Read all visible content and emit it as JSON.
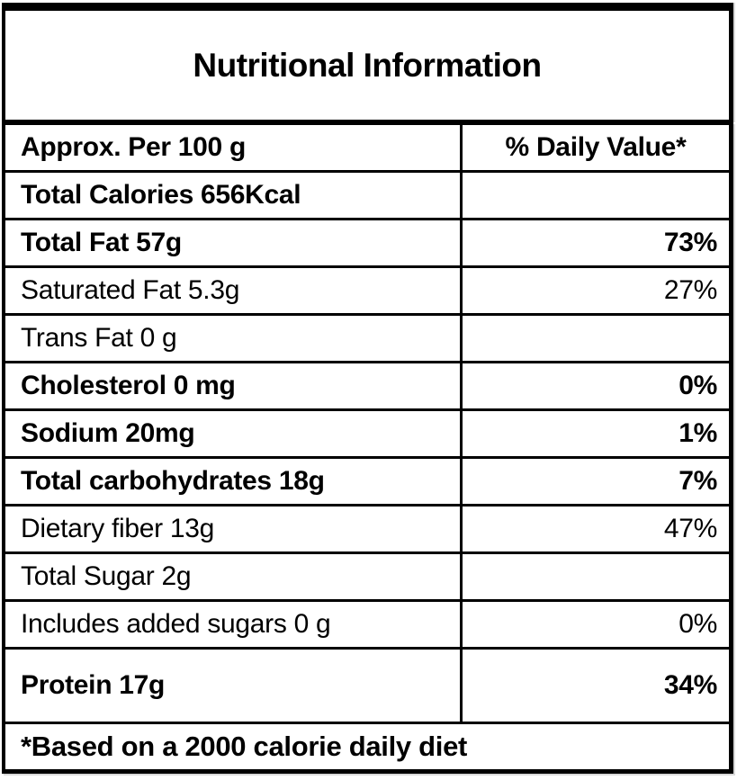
{
  "title": "Nutritional Information",
  "table": {
    "header": {
      "serving": "Approx. Per 100 g",
      "daily_value": "% Daily Value*"
    },
    "rows": [
      {
        "label": "Total Calories 656Kcal",
        "value": "",
        "bold": true
      },
      {
        "label": "Total Fat 57g",
        "value": "73%",
        "bold": true
      },
      {
        "label": "Saturated Fat 5.3g",
        "value": "27%",
        "bold": false
      },
      {
        "label": "Trans Fat 0 g",
        "value": "",
        "bold": false
      },
      {
        "label": "Cholesterol 0 mg",
        "value": "0%",
        "bold": true
      },
      {
        "label": "Sodium 20mg",
        "value": "1%",
        "bold": true
      },
      {
        "label": "Total carbohydrates 18g",
        "value": "7%",
        "bold": true
      },
      {
        "label": "Dietary fiber 13g",
        "value": "47%",
        "bold": false
      },
      {
        "label": "Total Sugar 2g",
        "value": "",
        "bold": false
      },
      {
        "label": "Includes added sugars 0 g",
        "value": "0%",
        "bold": false
      },
      {
        "label": "Protein 17g",
        "value": "34%",
        "bold": true
      }
    ],
    "footnote": "*Based on a 2000 calorie daily diet"
  },
  "colors": {
    "border": "#000000",
    "background": "#ffffff",
    "text": "#000000"
  }
}
